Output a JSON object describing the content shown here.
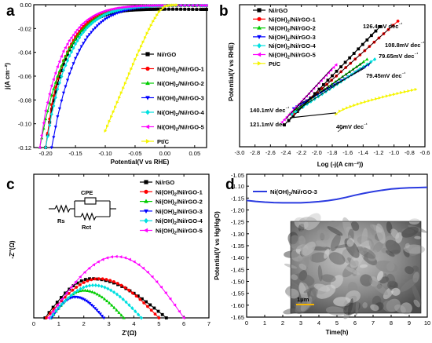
{
  "chart_data": [
    {
      "panel": "a",
      "type": "line",
      "xlabel": "Potential(V vs RHE)",
      "ylabel": "j(A cm⁻²)",
      "xlim": [
        -0.22,
        0.07
      ],
      "ylim": [
        -0.12,
        0.0
      ],
      "xticks": [
        -0.2,
        -0.15,
        -0.1,
        -0.05,
        0.0,
        0.05
      ],
      "xtick_labels": [
        "-0.20",
        "-0.15",
        "-0.10",
        "-0.05",
        "0.00",
        "0.05"
      ],
      "yticks": [
        0.0,
        -0.02,
        -0.04,
        -0.06,
        -0.08,
        -0.1,
        -0.12
      ],
      "ytick_labels": [
        "0.00",
        "-0.02",
        "-0.04",
        "-0.06",
        "-0.08",
        "-0.10",
        "-0.12"
      ],
      "legend_position": "right",
      "series": [
        {
          "name": "Ni/rGO",
          "color": "#000000",
          "marker": "square",
          "x": [
            -0.2,
            -0.19,
            -0.18,
            -0.17,
            -0.16,
            -0.15,
            -0.14,
            -0.13,
            -0.12,
            -0.11,
            -0.1,
            -0.09,
            -0.08,
            -0.07,
            -0.06,
            -0.05,
            -0.04,
            -0.03,
            -0.02,
            -0.01,
            0.0,
            0.02,
            0.04,
            0.06,
            0.07
          ],
          "y": [
            -0.12,
            -0.088,
            -0.066,
            -0.05,
            -0.038,
            -0.029,
            -0.022,
            -0.017,
            -0.013,
            -0.0105,
            -0.0085,
            -0.007,
            -0.006,
            -0.0052,
            -0.0047,
            -0.0044,
            -0.0042,
            -0.004,
            -0.0039,
            -0.0038,
            -0.0038,
            -0.0038,
            -0.0039,
            -0.004,
            -0.004
          ]
        },
        {
          "name": "Ni(OH)2/Ni/rGO-1",
          "color": "#ff0000",
          "marker": "circle",
          "x": [
            -0.2,
            -0.19,
            -0.18,
            -0.17,
            -0.16,
            -0.15,
            -0.14,
            -0.13,
            -0.12,
            -0.11,
            -0.1,
            -0.09,
            -0.08,
            -0.07,
            -0.06,
            -0.05,
            -0.04,
            -0.03,
            -0.02,
            -0.01,
            0.0,
            0.02,
            0.04,
            0.06,
            0.07
          ],
          "y": [
            -0.12,
            -0.084,
            -0.062,
            -0.047,
            -0.036,
            -0.027,
            -0.02,
            -0.015,
            -0.011,
            -0.008,
            -0.006,
            -0.0045,
            -0.0035,
            -0.0028,
            -0.0023,
            -0.002,
            -0.0017,
            -0.0015,
            -0.0013,
            -0.0012,
            -0.0011,
            -0.001,
            -0.001,
            -0.001,
            -0.001
          ]
        },
        {
          "name": "Ni(OH)2/Ni/rGO-2",
          "color": "#00cc00",
          "marker": "triangle-up",
          "x": [
            -0.21,
            -0.2,
            -0.19,
            -0.18,
            -0.17,
            -0.16,
            -0.15,
            -0.14,
            -0.13,
            -0.12,
            -0.11,
            -0.1,
            -0.09,
            -0.08,
            -0.07,
            -0.06,
            -0.05,
            -0.04,
            -0.03,
            -0.02,
            -0.01,
            0.0,
            0.02,
            0.04,
            0.06,
            0.07
          ],
          "y": [
            -0.12,
            -0.096,
            -0.076,
            -0.06,
            -0.047,
            -0.037,
            -0.029,
            -0.022,
            -0.017,
            -0.013,
            -0.0098,
            -0.0074,
            -0.0056,
            -0.0043,
            -0.0033,
            -0.0026,
            -0.0021,
            -0.0017,
            -0.0014,
            -0.0012,
            -0.001,
            -0.0009,
            -0.0008,
            -0.0008,
            -0.0008,
            -0.0008
          ]
        },
        {
          "name": "Ni(OH)2/Ni/rGO-3",
          "color": "#0000ff",
          "marker": "triangle-down",
          "x": [
            -0.19,
            -0.18,
            -0.17,
            -0.16,
            -0.15,
            -0.14,
            -0.13,
            -0.12,
            -0.11,
            -0.1,
            -0.09,
            -0.08,
            -0.07,
            -0.06,
            -0.05,
            -0.04,
            -0.03,
            -0.02,
            -0.01,
            0.0,
            0.02,
            0.04,
            0.06,
            0.07
          ],
          "y": [
            -0.12,
            -0.094,
            -0.074,
            -0.058,
            -0.045,
            -0.035,
            -0.027,
            -0.021,
            -0.016,
            -0.012,
            -0.0092,
            -0.007,
            -0.0053,
            -0.004,
            -0.003,
            -0.0023,
            -0.0018,
            -0.0014,
            -0.0011,
            -0.0009,
            -0.0008,
            -0.0008,
            -0.0008,
            -0.0008
          ]
        },
        {
          "name": "Ni(OH)2/Ni/rGO-4",
          "color": "#00e0e0",
          "marker": "diamond",
          "x": [
            -0.2,
            -0.19,
            -0.18,
            -0.17,
            -0.16,
            -0.15,
            -0.14,
            -0.13,
            -0.12,
            -0.11,
            -0.1,
            -0.09,
            -0.08,
            -0.07,
            -0.06,
            -0.05,
            -0.04,
            -0.03,
            -0.02,
            -0.01,
            0.0,
            0.02,
            0.04,
            0.06,
            0.07
          ],
          "y": [
            -0.12,
            -0.092,
            -0.071,
            -0.055,
            -0.043,
            -0.033,
            -0.025,
            -0.019,
            -0.0145,
            -0.011,
            -0.0082,
            -0.0062,
            -0.0047,
            -0.0035,
            -0.0027,
            -0.0021,
            -0.0016,
            -0.0013,
            -0.0011,
            -0.0009,
            -0.0008,
            -0.0008,
            -0.0008,
            -0.0008,
            -0.0008
          ]
        },
        {
          "name": "Ni(OH)2/Ni/rGO-5",
          "color": "#ff00ff",
          "marker": "triangle-left",
          "x": [
            -0.21,
            -0.2,
            -0.19,
            -0.18,
            -0.17,
            -0.16,
            -0.15,
            -0.14,
            -0.13,
            -0.12,
            -0.11,
            -0.1,
            -0.09,
            -0.08,
            -0.07,
            -0.06,
            -0.05,
            -0.04,
            -0.03,
            -0.02,
            -0.01,
            0.0,
            0.02,
            0.04,
            0.06,
            0.07
          ],
          "y": [
            -0.12,
            -0.089,
            -0.068,
            -0.052,
            -0.039,
            -0.03,
            -0.023,
            -0.017,
            -0.0128,
            -0.0095,
            -0.007,
            -0.0052,
            -0.0039,
            -0.0029,
            -0.0022,
            -0.0017,
            -0.0013,
            -0.001,
            -0.0008,
            -0.0007,
            -0.0006,
            -0.0006,
            -0.0006,
            -0.0006,
            -0.0006,
            -0.0006
          ]
        },
        {
          "name": "Pt/C",
          "color": "#f5f500",
          "marker": "triangle-right",
          "x": [
            -0.1,
            -0.09,
            -0.08,
            -0.07,
            -0.06,
            -0.05,
            -0.04,
            -0.03,
            -0.02,
            -0.01,
            0.0,
            0.01,
            0.02
          ],
          "y": [
            -0.106,
            -0.094,
            -0.082,
            -0.07,
            -0.058,
            -0.046,
            -0.035,
            -0.024,
            -0.014,
            -0.006,
            -0.0012,
            -0.0004,
            -0.0002
          ]
        }
      ]
    },
    {
      "panel": "b",
      "type": "scatter",
      "xlabel": "Log (-j(A cm⁻²))",
      "ylabel": "Potential(V vs RHE)",
      "xlim": [
        -3.0,
        -0.6
      ],
      "ylim": [
        -0.26,
        0.0
      ],
      "xticks": [
        -3.0,
        -2.8,
        -2.6,
        -2.4,
        -2.2,
        -2.0,
        -1.8,
        -1.6,
        -1.4,
        -1.2,
        -1.0,
        -0.8,
        -0.6
      ],
      "xtick_labels": [
        "-3.0",
        "-2.8",
        "-2.6",
        "-2.4",
        "-2.2",
        "-2.0",
        "-1.8",
        "-1.6",
        "-1.4",
        "-1.2",
        "-1.0",
        "-0.8",
        "-0.6"
      ],
      "yticks": [],
      "ytick_labels": [],
      "legend_position": "top-left",
      "series": [
        {
          "name": "Ni/rGO",
          "color": "#000000",
          "marker": "square",
          "x_range": [
            -2.42,
            -1.18
          ],
          "y_range": [
            -0.22,
            -0.04
          ]
        },
        {
          "name": "Ni(OH)2/Ni/rGO-1",
          "color": "#ff0000",
          "marker": "circle",
          "x_range": [
            -2.3,
            -0.95
          ],
          "y_range": [
            -0.2,
            -0.03
          ]
        },
        {
          "name": "Ni(OH)2/Ni/rGO-2",
          "color": "#00cc00",
          "marker": "triangle-up",
          "x_range": [
            -2.35,
            -1.35
          ],
          "y_range": [
            -0.2,
            -0.1
          ]
        },
        {
          "name": "Ni(OH)2/Ni/rGO-3",
          "color": "#0000ff",
          "marker": "triangle-down",
          "x_range": [
            -2.3,
            -1.33
          ],
          "y_range": [
            -0.19,
            -0.11
          ]
        },
        {
          "name": "Ni(OH)2/Ni/rGO-4",
          "color": "#00e0e0",
          "marker": "diamond",
          "x_range": [
            -2.32,
            -1.25
          ],
          "y_range": [
            -0.2,
            -0.1
          ]
        },
        {
          "name": "Ni(OH)2/Ni/rGO-5",
          "color": "#ff00ff",
          "marker": "triangle-left",
          "x_range": [
            -2.45,
            -1.75
          ],
          "y_range": [
            -0.215,
            -0.11
          ]
        },
        {
          "name": "Pt/C",
          "color": "#f5f500",
          "marker": "triangle-right",
          "x_range": [
            -1.75,
            -0.72
          ],
          "y_range": [
            -0.2,
            -0.155
          ]
        }
      ],
      "fits": [
        {
          "label": "126.4mV dec⁻¹",
          "x_range": [
            -2.42,
            -1.18
          ]
        },
        {
          "label": "108.8mV dec⁻¹",
          "x_range": [
            -2.3,
            -0.95
          ]
        },
        {
          "label": "79.65mV dec⁻¹",
          "x_range": [
            -2.32,
            -1.25
          ]
        },
        {
          "label": "79.45mV dec⁻¹",
          "x_range": [
            -2.3,
            -1.33
          ]
        },
        {
          "label": "140.1mV dec⁻¹",
          "x_range": [
            -2.45,
            -1.75
          ]
        },
        {
          "label": "121.1mV dec⁻¹",
          "x_range": [
            -2.35,
            -1.35
          ]
        },
        {
          "label": "40mV dec⁻¹",
          "x_range": [
            -2.35,
            -1.75
          ]
        }
      ]
    },
    {
      "panel": "c",
      "type": "scatter",
      "xlabel": "Z'(Ω)",
      "ylabel": "-Z''(Ω)",
      "xlim": [
        0,
        7
      ],
      "ylim": [
        0,
        5.5
      ],
      "xticks": [
        0,
        1,
        2,
        3,
        4,
        5,
        6,
        7
      ],
      "xtick_labels": [
        "0",
        "1",
        "2",
        "3",
        "4",
        "5",
        "6",
        "7"
      ],
      "legend_position": "top-right",
      "inset_labels": {
        "cpe": "CPE",
        "rs": "Rs",
        "rct": "Rct"
      },
      "series": [
        {
          "name": "Ni/rGO",
          "color": "#000000",
          "marker": "square",
          "x_start": 0.45,
          "x_end": 5.3,
          "peak_x": 2.3,
          "peak_y": 1.5
        },
        {
          "name": "Ni(OH)2/Ni/rGO-1",
          "color": "#ff0000",
          "marker": "circle",
          "x_start": 0.5,
          "x_end": 5.0,
          "peak_x": 2.6,
          "peak_y": 1.5
        },
        {
          "name": "Ni(OH)2/Ni/rGO-2",
          "color": "#00cc00",
          "marker": "triangle-up",
          "x_start": 0.7,
          "x_end": 3.6,
          "peak_x": 2.0,
          "peak_y": 1.05
        },
        {
          "name": "Ni(OH)2/Ni/rGO-3",
          "color": "#0000ff",
          "marker": "triangle-down",
          "x_start": 0.7,
          "x_end": 2.8,
          "peak_x": 1.65,
          "peak_y": 0.8
        },
        {
          "name": "Ni(OH)2/Ni/rGO-4",
          "color": "#00e0e0",
          "marker": "diamond",
          "x_start": 0.65,
          "x_end": 4.3,
          "peak_x": 2.4,
          "peak_y": 1.25
        },
        {
          "name": "Ni(OH)2/Ni/rGO-5",
          "color": "#ff00ff",
          "marker": "triangle-left",
          "x_start": 0.6,
          "x_end": 6.0,
          "peak_x": 3.3,
          "peak_y": 2.35
        }
      ]
    },
    {
      "panel": "d",
      "type": "line",
      "xlabel": "Time(h)",
      "ylabel": "Potential(V vs Hg/HgO)",
      "xlim": [
        0,
        10
      ],
      "ylim": [
        -1.65,
        -1.05
      ],
      "xticks": [
        0,
        1,
        2,
        3,
        4,
        5,
        6,
        7,
        8,
        9,
        10
      ],
      "xtick_labels": [
        "0",
        "1",
        "2",
        "3",
        "4",
        "5",
        "6",
        "7",
        "8",
        "9",
        "10"
      ],
      "yticks": [
        -1.1,
        -1.15,
        -1.2,
        -1.25,
        -1.3,
        -1.35,
        -1.4,
        -1.45,
        -1.5,
        -1.55,
        -1.6,
        -1.65
      ],
      "ytick_labels": [
        "-1.10",
        "-1.15",
        "-1.20",
        "-1.25",
        "-1.30",
        "-1.35",
        "-1.40",
        "-1.45",
        "-1.50",
        "-1.55",
        "-1.60",
        "-1.65"
      ],
      "extra_ytick_label": "-1.05",
      "legend_position": "top-left",
      "inset_scale_label": "1μm",
      "series": [
        {
          "name": "Ni(OH)2/Ni/rGO-3",
          "color": "#2b3be0",
          "x": [
            0,
            0.5,
            1,
            1.5,
            2,
            2.5,
            3,
            3.5,
            4,
            4.5,
            5,
            5.5,
            6,
            6.5,
            7,
            7.5,
            8,
            8.5,
            9,
            9.5,
            10
          ],
          "y": [
            -1.16,
            -1.164,
            -1.167,
            -1.169,
            -1.17,
            -1.17,
            -1.17,
            -1.168,
            -1.165,
            -1.161,
            -1.155,
            -1.147,
            -1.138,
            -1.13,
            -1.123,
            -1.117,
            -1.112,
            -1.109,
            -1.107,
            -1.106,
            -1.105
          ]
        }
      ]
    }
  ]
}
